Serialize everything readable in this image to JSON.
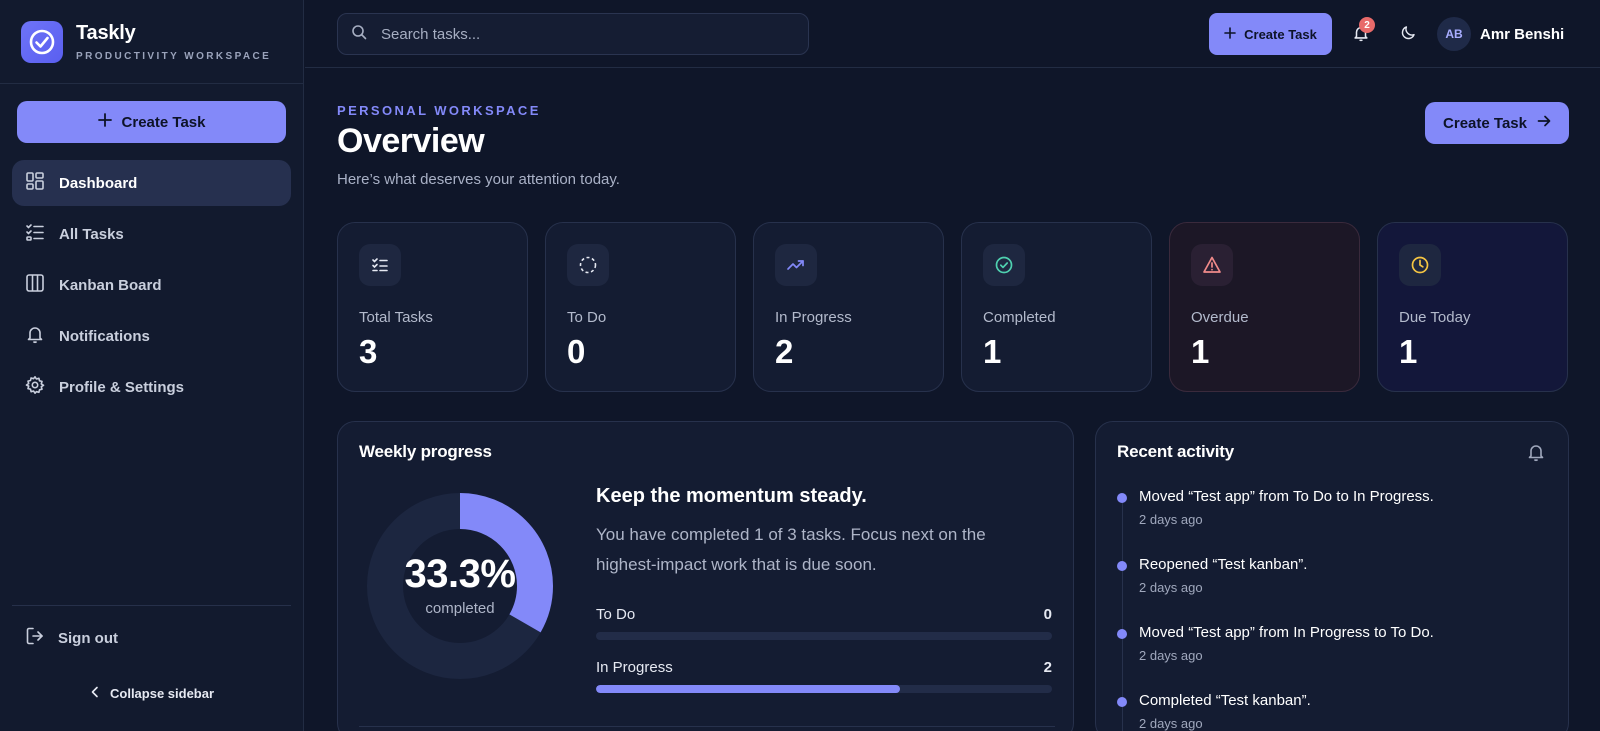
{
  "brand": {
    "name": "Taskly",
    "subtitle": "PRODUCTIVITY WORKSPACE"
  },
  "sidebar": {
    "create_label": "Create Task",
    "items": [
      {
        "label": "Dashboard",
        "icon": "dashboard-icon",
        "active": true
      },
      {
        "label": "All Tasks",
        "icon": "list-check-icon"
      },
      {
        "label": "Kanban Board",
        "icon": "kanban-icon"
      },
      {
        "label": "Notifications",
        "icon": "bell-icon"
      },
      {
        "label": "Profile & Settings",
        "icon": "gear-icon"
      }
    ],
    "signout_label": "Sign out",
    "collapse_label": "Collapse sidebar"
  },
  "topbar": {
    "search_placeholder": "Search tasks...",
    "create_label": "Create Task",
    "notification_count": "2",
    "user_initials": "AB",
    "user_name": "Amr Benshi"
  },
  "header": {
    "eyebrow": "PERSONAL WORKSPACE",
    "title": "Overview",
    "subtitle": "Here’s what deserves your attention today.",
    "create_label": "Create Task"
  },
  "stats": [
    {
      "label": "Total Tasks",
      "value": "3",
      "icon": "checklist-icon",
      "color": "#e6e9f2"
    },
    {
      "label": "To Do",
      "value": "0",
      "icon": "dashed-circle-icon",
      "color": "#e6e9f2"
    },
    {
      "label": "In Progress",
      "value": "2",
      "icon": "trending-up-icon",
      "color": "#8389f9"
    },
    {
      "label": "Completed",
      "value": "1",
      "icon": "check-circle-icon",
      "color": "#4fd1b0"
    },
    {
      "label": "Overdue",
      "value": "1",
      "icon": "alert-triangle-icon",
      "color": "#f08a8a"
    },
    {
      "label": "Due Today",
      "value": "1",
      "icon": "clock-icon",
      "color": "#f5c542"
    }
  ],
  "weekly": {
    "title": "Weekly progress",
    "percent_label": "33.3%",
    "percent_fraction": 0.333,
    "completed_label": "completed",
    "headline": "Keep the momentum steady.",
    "body": "You have completed 1 of 3 tasks. Focus next on the highest-impact work that is due soon.",
    "bars": [
      {
        "label": "To Do",
        "value": "0",
        "fraction": 0
      },
      {
        "label": "In Progress",
        "value": "2",
        "fraction": 0.667
      }
    ]
  },
  "activity": {
    "title": "Recent activity",
    "items": [
      {
        "text": "Moved “Test app” from To Do to In Progress.",
        "time": "2 days ago"
      },
      {
        "text": "Reopened “Test kanban”.",
        "time": "2 days ago"
      },
      {
        "text": "Moved “Test app” from In Progress to To Do.",
        "time": "2 days ago"
      },
      {
        "text": "Completed “Test kanban”.",
        "time": "2 days ago"
      }
    ]
  },
  "colors": {
    "accent": "#8389f9",
    "background": "#0f1629",
    "card": "#141c32"
  }
}
